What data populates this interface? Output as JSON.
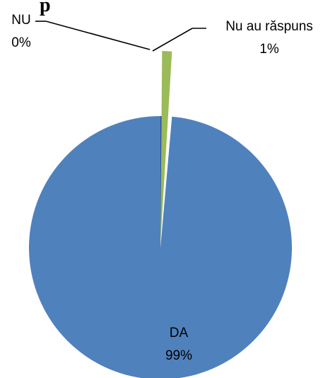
{
  "chart_data": {
    "type": "pie",
    "title": "",
    "series": [
      {
        "name": "",
        "categories": [
          "NU",
          "Nu au răspuns",
          "DA"
        ],
        "values": [
          0.2,
          1.2,
          98.6
        ],
        "percent_labels": [
          "0%",
          "1%",
          "99%"
        ],
        "colors": [
          "#2f4f8f",
          "#9bbb59",
          "#4f81bd"
        ]
      }
    ],
    "data_labels": [
      {
        "category": "NU",
        "percent": "0%"
      },
      {
        "category": "Nu au răspuns",
        "percent": "1%"
      },
      {
        "category": "DA",
        "percent": "99%"
      }
    ],
    "legend": "none"
  },
  "title_fragment": "p"
}
